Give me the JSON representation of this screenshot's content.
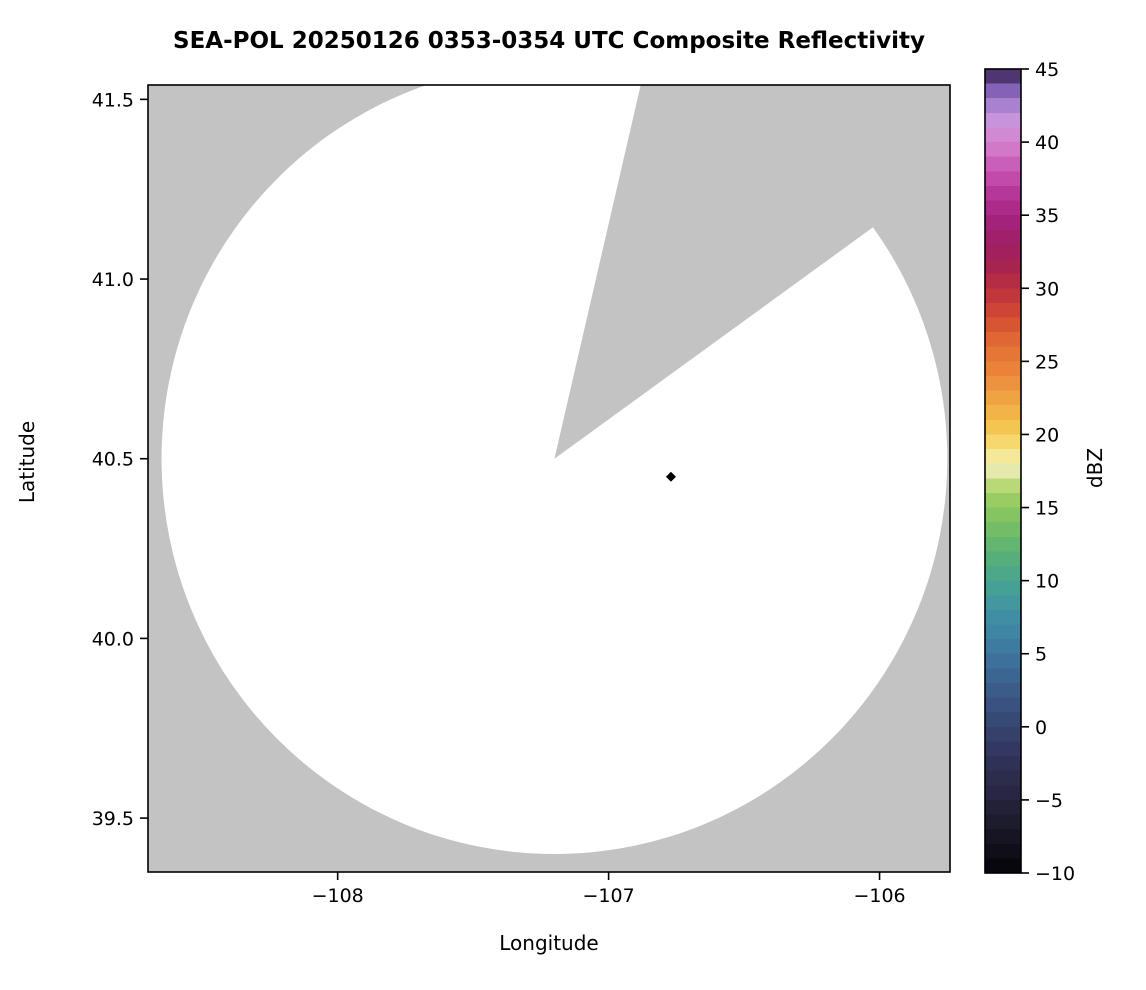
{
  "chart_data": {
    "type": "heatmap",
    "subtype": "radar-ppi-composite-reflectivity-map",
    "title": "SEA-POL 20250126 0353-0354 UTC Composite Reflectivity",
    "xlabel": "Longitude",
    "ylabel": "Latitude",
    "xlim": [
      -108.7,
      -105.74
    ],
    "ylim": [
      39.35,
      41.54
    ],
    "xticks": [
      -108,
      -107,
      -106
    ],
    "xtick_labels": [
      "−108",
      "−107",
      "−106"
    ],
    "yticks": [
      41.5,
      41.0,
      40.5,
      40.0,
      39.5
    ],
    "ytick_labels": [
      "41.5",
      "41.0",
      "40.5",
      "40.0",
      "39.5"
    ],
    "grid": false,
    "background_color": "#c3c3c3",
    "no_echo_color": "#ffffff",
    "radar": {
      "center_lon": -107.2,
      "center_lat": 40.5,
      "range_deg_lon": 1.45,
      "range_deg_lat": 1.1
    },
    "blocked_sector_azimuth_deg": [
      13,
      54
    ],
    "marker_point": {
      "lon": -106.77,
      "lat": 40.45,
      "color": "#000000",
      "shape": "diamond"
    },
    "colorbar": {
      "label": "dBZ",
      "min": -10,
      "max": 45,
      "step": 1,
      "ticks": [
        -10,
        -5,
        0,
        5,
        10,
        15,
        20,
        25,
        30,
        35,
        40,
        45
      ],
      "tick_labels": [
        "−10",
        "−5",
        "0",
        "5",
        "10",
        "15",
        "20",
        "25",
        "30",
        "35",
        "40",
        "45"
      ],
      "stops": [
        {
          "value": -10,
          "color": "#050308"
        },
        {
          "value": -8,
          "color": "#14121f"
        },
        {
          "value": -6,
          "color": "#201e33"
        },
        {
          "value": -4,
          "color": "#2a2947"
        },
        {
          "value": -2,
          "color": "#31345c"
        },
        {
          "value": 0,
          "color": "#364470"
        },
        {
          "value": 2,
          "color": "#3a5784"
        },
        {
          "value": 4,
          "color": "#3c6b97"
        },
        {
          "value": 6,
          "color": "#3e80a4"
        },
        {
          "value": 8,
          "color": "#4093a2"
        },
        {
          "value": 10,
          "color": "#48a590"
        },
        {
          "value": 12,
          "color": "#5bb274"
        },
        {
          "value": 14,
          "color": "#79c160"
        },
        {
          "value": 16,
          "color": "#a3d165"
        },
        {
          "value": 17,
          "color": "#cfe18d"
        },
        {
          "value": 17.8,
          "color": "#f2efbe"
        },
        {
          "value": 18.6,
          "color": "#f7e794"
        },
        {
          "value": 20,
          "color": "#f5cf55"
        },
        {
          "value": 22,
          "color": "#f1ab45"
        },
        {
          "value": 24,
          "color": "#ec8a3b"
        },
        {
          "value": 26,
          "color": "#e46f34"
        },
        {
          "value": 28,
          "color": "#d44c31"
        },
        {
          "value": 30,
          "color": "#bb3040"
        },
        {
          "value": 32,
          "color": "#a22055"
        },
        {
          "value": 34,
          "color": "#9f2073"
        },
        {
          "value": 36,
          "color": "#b02d92"
        },
        {
          "value": 38,
          "color": "#c653b2"
        },
        {
          "value": 40,
          "color": "#d783cf"
        },
        {
          "value": 41.5,
          "color": "#c794dc"
        },
        {
          "value": 43,
          "color": "#9a77cb"
        },
        {
          "value": 44,
          "color": "#6e4fa0"
        },
        {
          "value": 45,
          "color": "#2f1d45"
        }
      ]
    }
  }
}
